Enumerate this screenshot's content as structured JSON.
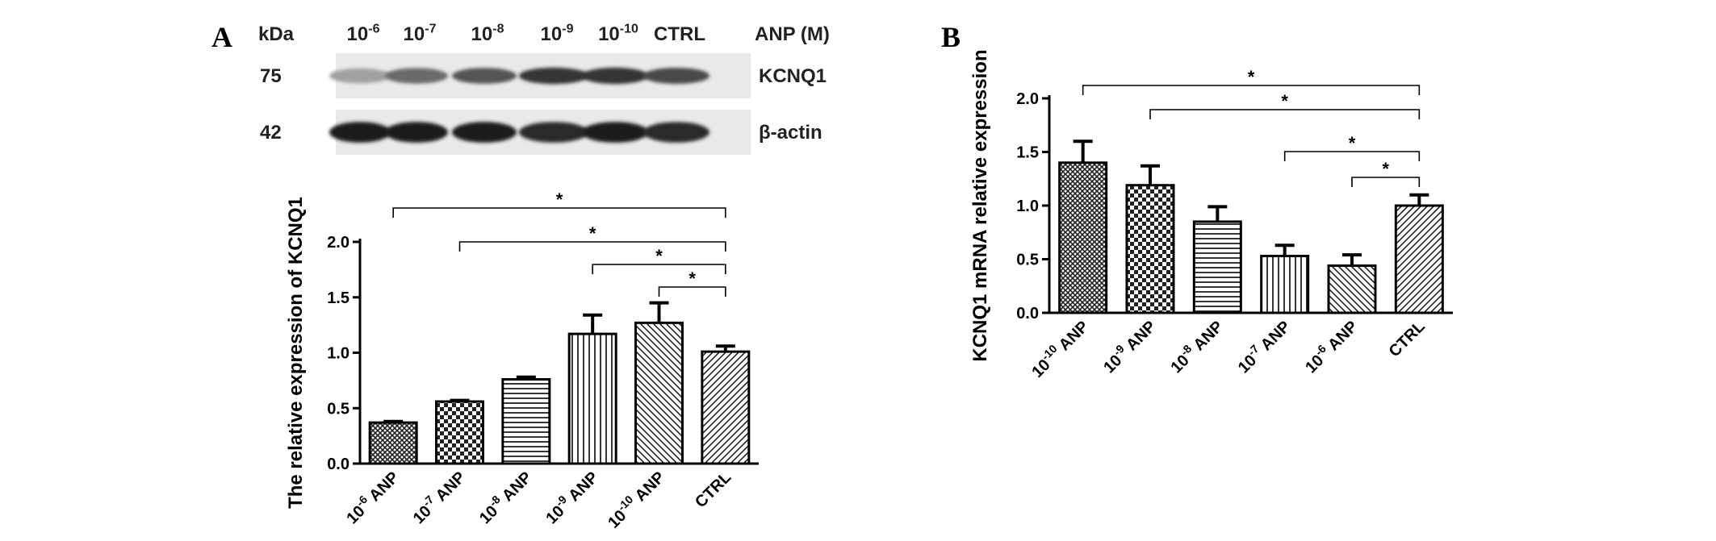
{
  "panels": {
    "a": {
      "letter": "A"
    },
    "b": {
      "letter": "B"
    }
  },
  "blot": {
    "kda_header": "kDa",
    "treatment_label": "ANP (M)",
    "lanes": [
      {
        "base": "10",
        "exp": "-6"
      },
      {
        "base": "10",
        "exp": "-7"
      },
      {
        "base": "10",
        "exp": "-8"
      },
      {
        "base": "10",
        "exp": "-9"
      },
      {
        "base": "10",
        "exp": "-10"
      },
      {
        "base": "CTRL",
        "exp": ""
      }
    ],
    "rows": [
      {
        "kda": "75",
        "protein": "KCNQ1",
        "intensity": [
          0.35,
          0.6,
          0.7,
          0.85,
          0.85,
          0.75
        ]
      },
      {
        "kda": "42",
        "protein": "β-actin",
        "intensity": [
          0.95,
          0.95,
          0.95,
          0.9,
          0.95,
          0.9
        ]
      }
    ]
  },
  "chart_data": [
    {
      "type": "bar",
      "panel": "A",
      "categories": [
        {
          "base": "10",
          "exp": "-6",
          "suffix": " ANP"
        },
        {
          "base": "10",
          "exp": "-7",
          "suffix": " ANP"
        },
        {
          "base": "10",
          "exp": "-8",
          "suffix": " ANP"
        },
        {
          "base": "10",
          "exp": "-9",
          "suffix": " ANP"
        },
        {
          "base": "10",
          "exp": "-10",
          "suffix": " ANP"
        },
        {
          "base": "CTRL",
          "exp": "",
          "suffix": ""
        }
      ],
      "values": [
        0.37,
        0.56,
        0.76,
        1.17,
        1.27,
        1.01
      ],
      "errors": [
        0.01,
        0.01,
        0.02,
        0.17,
        0.18,
        0.05
      ],
      "ylabel": "The relative expression of KCNQ1",
      "ylim": [
        0,
        2.0
      ],
      "yticks": [
        "0.0",
        "0.5",
        "1.0",
        "1.5",
        "2.0"
      ],
      "patterns": [
        "crosshatch-dense",
        "checker",
        "hlines",
        "vlines",
        "diag-down",
        "diag-up"
      ],
      "significance": [
        {
          "from": 0,
          "to": 5,
          "label": "*"
        },
        {
          "from": 1,
          "to": 5,
          "label": "*"
        },
        {
          "from": 3,
          "to": 5,
          "label": "*"
        },
        {
          "from": 4,
          "to": 5,
          "label": "*"
        }
      ]
    },
    {
      "type": "bar",
      "panel": "B",
      "categories": [
        {
          "base": "10",
          "exp": "-10",
          "suffix": " ANP"
        },
        {
          "base": "10",
          "exp": "-9",
          "suffix": " ANP"
        },
        {
          "base": "10",
          "exp": "-8",
          "suffix": " ANP"
        },
        {
          "base": "10",
          "exp": "-7",
          "suffix": " ANP"
        },
        {
          "base": "10",
          "exp": "-6",
          "suffix": " ANP"
        },
        {
          "base": "CTRL",
          "exp": "",
          "suffix": ""
        }
      ],
      "values": [
        1.4,
        1.19,
        0.85,
        0.53,
        0.44,
        1.0
      ],
      "errors": [
        0.2,
        0.18,
        0.14,
        0.1,
        0.1,
        0.1
      ],
      "ylabel": "KCNQ1 mRNA relative expression",
      "ylim": [
        0,
        2.0
      ],
      "yticks": [
        "0.0",
        "0.5",
        "1.0",
        "1.5",
        "2.0"
      ],
      "patterns": [
        "crosshatch-dense",
        "checker",
        "hlines",
        "vlines",
        "diag-down",
        "diag-up"
      ],
      "significance": [
        {
          "from": 0,
          "to": 5,
          "label": "*"
        },
        {
          "from": 1,
          "to": 5,
          "label": "*"
        },
        {
          "from": 3,
          "to": 5,
          "label": "*"
        },
        {
          "from": 4,
          "to": 5,
          "label": "*"
        }
      ]
    }
  ]
}
